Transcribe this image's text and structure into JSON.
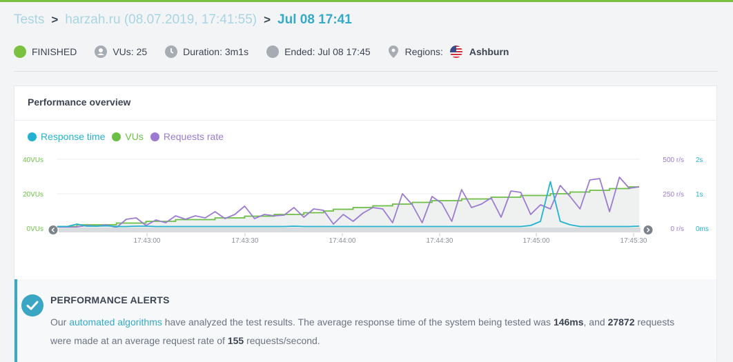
{
  "breadcrumb": {
    "tests": "Tests",
    "test_name": "harzah.ru (08.07.2019, 17:41:55)",
    "current": "Jul 08 17:41"
  },
  "status": {
    "state": "FINISHED",
    "vus": "VUs: 25",
    "duration": "Duration: 3m1s",
    "ended": "Ended: Jul 08 17:45",
    "regions_label": "Regions:",
    "region": "Ashburn"
  },
  "card": {
    "title": "Performance overview"
  },
  "legend": {
    "response_time": "Response time",
    "vus": "VUs",
    "requests_rate": "Requests rate"
  },
  "colors": {
    "response_time": "#22b2cf",
    "vus": "#6cbf45",
    "requests_rate": "#9b7bd1",
    "accent": "#34aac7",
    "finished": "#7ac142"
  },
  "icons": {
    "status": "finished-dot-icon",
    "vus": "user-icon",
    "duration": "clock-icon",
    "ended": "calendar-dot-icon",
    "regions": "location-pin-icon",
    "region_flag": "us-flag-icon",
    "scroll_left": "chevron-left-icon",
    "scroll_right": "chevron-right-icon",
    "alert": "check-circle-icon"
  },
  "chart_data": {
    "type": "line",
    "x": [
      "17:42:37",
      "17:42:40",
      "17:42:43",
      "17:42:46",
      "17:42:49",
      "17:42:52",
      "17:42:55",
      "17:42:58",
      "17:43:01",
      "17:43:04",
      "17:43:07",
      "17:43:10",
      "17:43:13",
      "17:43:16",
      "17:43:19",
      "17:43:22",
      "17:43:25",
      "17:43:28",
      "17:43:31",
      "17:43:34",
      "17:43:37",
      "17:43:40",
      "17:43:43",
      "17:43:46",
      "17:43:49",
      "17:43:52",
      "17:43:55",
      "17:43:58",
      "17:44:01",
      "17:44:04",
      "17:44:07",
      "17:44:10",
      "17:44:13",
      "17:44:16",
      "17:44:19",
      "17:44:22",
      "17:44:25",
      "17:44:28",
      "17:44:31",
      "17:44:34",
      "17:44:37",
      "17:44:40",
      "17:44:43",
      "17:44:46",
      "17:44:49",
      "17:44:52",
      "17:44:55",
      "17:44:58",
      "17:45:01",
      "17:45:04",
      "17:45:07",
      "17:45:10",
      "17:45:13",
      "17:45:16",
      "17:45:19",
      "17:45:22",
      "17:45:25",
      "17:45:28",
      "17:45:31",
      "17:45:34"
    ],
    "x_ticks": [
      "17:43:00",
      "17:43:30",
      "17:44:00",
      "17:44:30",
      "17:45:00",
      "17:45:30"
    ],
    "series": [
      {
        "name": "VUs",
        "axis": "VUs",
        "values": [
          1,
          1,
          2,
          2,
          2,
          2,
          3,
          3,
          3,
          4,
          4,
          4,
          5,
          5,
          5,
          5,
          6,
          6,
          6,
          7,
          7,
          7,
          8,
          8,
          8,
          9,
          9,
          10,
          11,
          11,
          12,
          12,
          13,
          13,
          14,
          14,
          15,
          15,
          16,
          16,
          16,
          17,
          17,
          17,
          18,
          18,
          18,
          19,
          19,
          19,
          20,
          20,
          21,
          21,
          22,
          22,
          23,
          23,
          24,
          24
        ]
      },
      {
        "name": "Requests rate",
        "axis": "r/s",
        "values": [
          10,
          5,
          10,
          20,
          15,
          25,
          5,
          65,
          75,
          20,
          60,
          40,
          90,
          65,
          90,
          75,
          120,
          70,
          100,
          160,
          70,
          100,
          90,
          95,
          150,
          80,
          140,
          130,
          30,
          100,
          50,
          110,
          150,
          140,
          40,
          250,
          170,
          40,
          230,
          180,
          50,
          280,
          150,
          175,
          220,
          80,
          270,
          260,
          100,
          170,
          140,
          310,
          230,
          140,
          350,
          360,
          120,
          370,
          290,
          300
        ]
      },
      {
        "name": "Response time",
        "axis": "s",
        "values": [
          0.05,
          0.05,
          0.12,
          0.06,
          0.06,
          0.07,
          0.05,
          0.05,
          0.06,
          0.06,
          0.05,
          0.05,
          0.05,
          0.05,
          0.05,
          0.05,
          0.05,
          0.05,
          0.05,
          0.05,
          0.05,
          0.05,
          0.05,
          0.05,
          0.06,
          0.05,
          0.05,
          0.05,
          0.05,
          0.05,
          0.05,
          0.05,
          0.05,
          0.05,
          0.05,
          0.05,
          0.05,
          0.05,
          0.05,
          0.05,
          0.05,
          0.05,
          0.05,
          0.05,
          0.05,
          0.05,
          0.05,
          0.05,
          0.08,
          0.2,
          1.35,
          0.2,
          0.1,
          0.05,
          0.05,
          0.05,
          0.05,
          0.05,
          0.05,
          0.06
        ]
      }
    ],
    "axes": {
      "vus": {
        "ticks": [
          "0VUs",
          "20VUs",
          "40VUs"
        ],
        "ylim": [
          0,
          40
        ]
      },
      "requests": {
        "ticks": [
          "0 r/s",
          "250 r/s",
          "500 r/s"
        ],
        "ylim": [
          0,
          500
        ]
      },
      "response": {
        "ticks": [
          "0ms",
          "1s",
          "2s"
        ],
        "ylim": [
          0,
          2
        ]
      }
    }
  },
  "alert": {
    "title": "PERFORMANCE ALERTS",
    "text_before": "Our ",
    "link": "automated algorithms",
    "text_mid1": " have analyzed the test results. The average response time of the system being tested was ",
    "avg_response": "146ms",
    "text_mid2": ", and ",
    "requests": "27872",
    "text_mid3": " requests were made at an average request rate of ",
    "rate": "155",
    "text_end": " requests/second."
  }
}
